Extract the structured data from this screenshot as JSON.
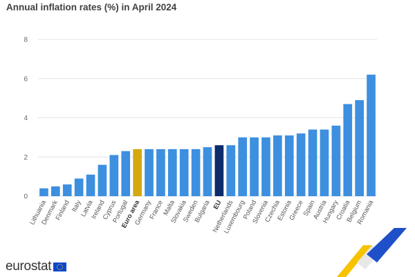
{
  "title": "Annual inflation rates (%) in April 2024",
  "brand": {
    "name": "eurostat",
    "flag_icon": "eu-flag-icon"
  },
  "colors": {
    "default": "#3d8fe0",
    "euro_area": "#d4a90f",
    "eu": "#0b2b6a",
    "grid": "#e3e3e3"
  },
  "chart_data": {
    "type": "bar",
    "title": "Annual inflation rates (%) in April 2024",
    "xlabel": "",
    "ylabel": "",
    "ylim": [
      0,
      8
    ],
    "yticks": [
      "0",
      "2",
      "4",
      "6",
      "8"
    ],
    "grid": true,
    "categories": [
      "Lithuania",
      "Denmark",
      "Finland",
      "Italy",
      "Latvia",
      "Ireland",
      "Cyprus",
      "Portugal",
      "Euro area",
      "Germany",
      "France",
      "Malta",
      "Slovakia",
      "Sweden",
      "Bulgaria",
      "EU",
      "Netherlands",
      "Luxembourg",
      "Poland",
      "Slovenia",
      "Czechia",
      "Estonia",
      "Greece",
      "Spain",
      "Austria",
      "Hungary",
      "Croatia",
      "Belgium",
      "Romania"
    ],
    "values": [
      0.4,
      0.5,
      0.6,
      0.9,
      1.1,
      1.6,
      2.1,
      2.3,
      2.4,
      2.4,
      2.4,
      2.4,
      2.4,
      2.4,
      2.5,
      2.6,
      2.6,
      3.0,
      3.0,
      3.0,
      3.1,
      3.1,
      3.2,
      3.4,
      3.4,
      3.6,
      4.7,
      4.9,
      6.2
    ],
    "highlight": {
      "Euro area": "euro_area",
      "EU": "eu"
    }
  }
}
